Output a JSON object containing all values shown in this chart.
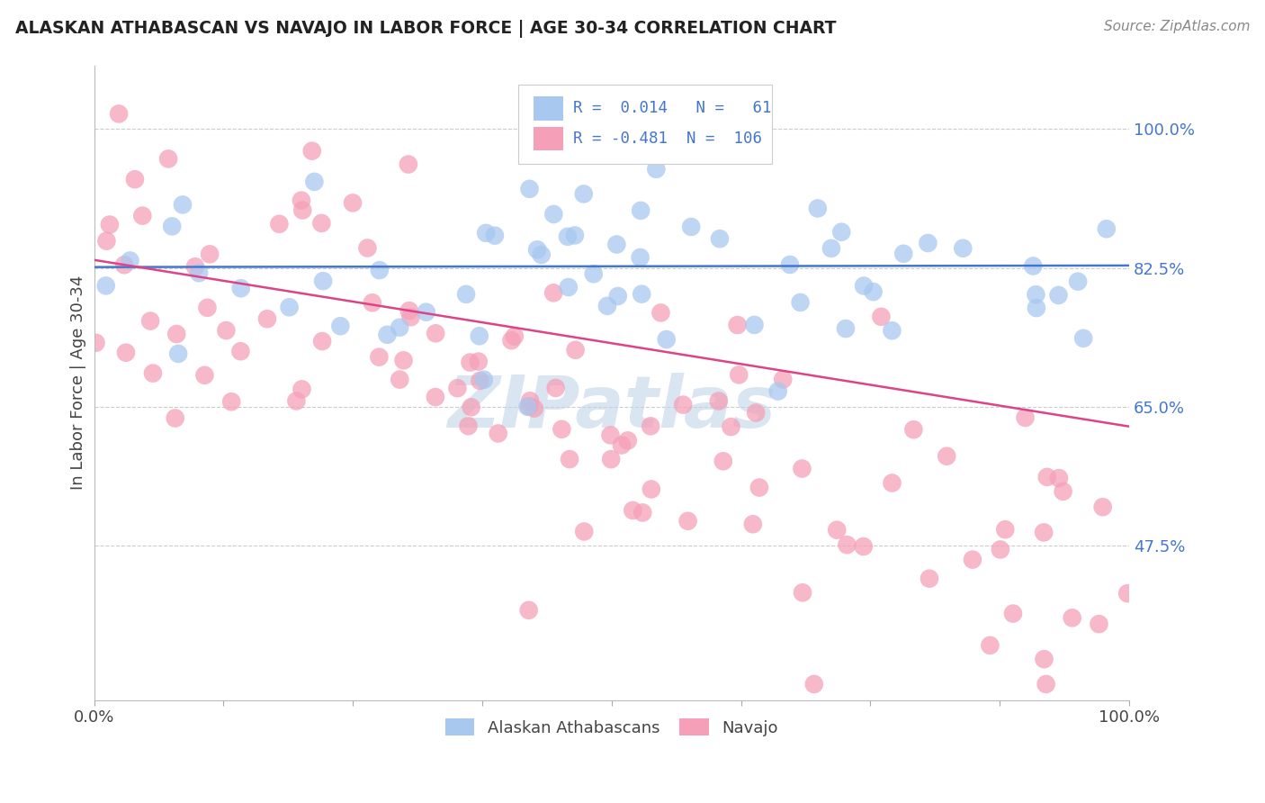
{
  "title": "ALASKAN ATHABASCAN VS NAVAJO IN LABOR FORCE | AGE 30-34 CORRELATION CHART",
  "source": "Source: ZipAtlas.com",
  "ylabel": "In Labor Force | Age 30-34",
  "ytick_labels": [
    "100.0%",
    "82.5%",
    "65.0%",
    "47.5%"
  ],
  "ytick_values": [
    1.0,
    0.825,
    0.65,
    0.475
  ],
  "xlim": [
    0.0,
    1.0
  ],
  "ylim": [
    0.28,
    1.08
  ],
  "legend_entries": [
    "Alaskan Athabascans",
    "Navajo"
  ],
  "legend_r_blue": "R =  0.014",
  "legend_n_blue": "N =   61",
  "legend_r_pink": "R = -0.481",
  "legend_n_pink": "N =  106",
  "blue_color": "#a8c8f0",
  "pink_color": "#f5a0b8",
  "blue_line_color": "#4477cc",
  "pink_line_color": "#dd4488",
  "tick_color": "#4477cc",
  "watermark_color": "#c0d4e8",
  "background_color": "#ffffff",
  "grid_color": "#cccccc",
  "title_color": "#222222",
  "source_color": "#888888",
  "label_color": "#444444",
  "blue_line_start_y": 0.827,
  "blue_line_end_y": 0.829,
  "pink_line_start_y": 0.835,
  "pink_line_end_y": 0.625
}
